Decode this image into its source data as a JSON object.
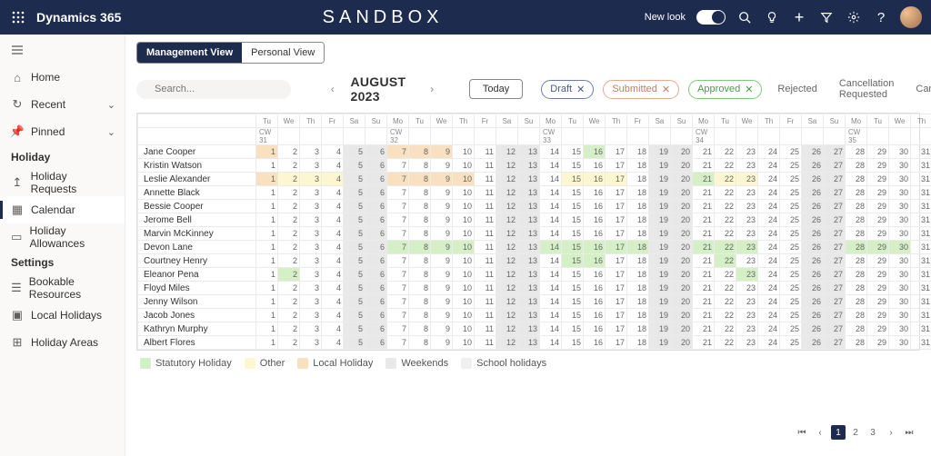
{
  "topbar": {
    "brand": "Dynamics 365",
    "center": "SANDBOX",
    "newlook": "New look"
  },
  "sidebar": {
    "home": "Home",
    "recent": "Recent",
    "pinned": "Pinned",
    "group_holiday": "Holiday",
    "holiday_requests": "Holiday Requests",
    "calendar": "Calendar",
    "holiday_allowances": "Holiday Allowances",
    "group_settings": "Settings",
    "bookable_resources": "Bookable Resources",
    "local_holidays": "Local Holidays",
    "holiday_areas": "Holiday Areas"
  },
  "views": {
    "management": "Management View",
    "personal": "Personal View"
  },
  "search": {
    "placeholder": "Search..."
  },
  "month": {
    "label": "AUGUST 2023",
    "today": "Today"
  },
  "filters": {
    "draft": "Draft",
    "submitted": "Submitted",
    "approved": "Approved",
    "rejected": "Rejected",
    "cancellation": "Cancellation Requested",
    "cancelled": "Cancelled"
  },
  "legend": {
    "statutory": "Statutory Holiday",
    "other": "Other",
    "local": "Local Holiday",
    "weekends": "Weekends",
    "school": "School holidays",
    "colors": {
      "statutory": "#d5efc6",
      "other": "#fcf7d0",
      "local": "#f9e0c0",
      "weekends": "#e0e0e0",
      "school": "#f0f0f0"
    }
  },
  "calendar": {
    "day_headers": [
      "Tu",
      "We",
      "Th",
      "Fr",
      "Sa",
      "Su",
      "Mo",
      "Tu",
      "We",
      "Th",
      "Fr",
      "Sa",
      "Su",
      "Mo",
      "Tu",
      "We",
      "Th",
      "Fr",
      "Sa",
      "Su",
      "Mo",
      "Tu",
      "We",
      "Th",
      "Fr",
      "Sa",
      "Su",
      "Mo",
      "Tu",
      "We",
      "Th"
    ],
    "day_numbers": [
      1,
      2,
      3,
      4,
      5,
      6,
      7,
      8,
      9,
      10,
      11,
      12,
      13,
      14,
      15,
      16,
      17,
      18,
      19,
      20,
      21,
      22,
      23,
      24,
      25,
      26,
      27,
      28,
      29,
      30,
      31
    ],
    "weeks": {
      "0": "CW 31",
      "6": "CW 32",
      "13": "CW 33",
      "20": "CW 34",
      "27": "CW 35"
    },
    "weekend_idx": [
      4,
      5,
      11,
      12,
      18,
      19,
      25,
      26
    ],
    "employees": [
      {
        "name": "Jane Cooper",
        "cells": {
          "0": "local",
          "6": "local",
          "7": "local",
          "8": "local",
          "15": "stat"
        }
      },
      {
        "name": "Kristin Watson",
        "cells": {}
      },
      {
        "name": "Leslie Alexander",
        "cells": {
          "0": "local",
          "1": "other",
          "2": "other",
          "3": "other",
          "6": "local",
          "7": "local",
          "8": "local",
          "9": "local",
          "14": "other",
          "15": "other",
          "16": "other",
          "20": "stat",
          "21": "other",
          "22": "other"
        }
      },
      {
        "name": "Annette Black",
        "cells": {}
      },
      {
        "name": "Bessie Cooper",
        "cells": {}
      },
      {
        "name": "Jerome Bell",
        "cells": {}
      },
      {
        "name": "Marvin McKinney",
        "cells": {}
      },
      {
        "name": "Devon Lane",
        "cells": {
          "6": "stat",
          "7": "stat",
          "8": "stat",
          "9": "stat",
          "13": "stat",
          "14": "stat",
          "15": "stat",
          "16": "stat",
          "17": "stat",
          "20": "stat",
          "21": "stat",
          "22": "stat",
          "27": "stat",
          "28": "stat",
          "29": "stat"
        }
      },
      {
        "name": "Courtney Henry",
        "cells": {
          "14": "stat",
          "15": "stat",
          "21": "stat"
        }
      },
      {
        "name": "Eleanor Pena",
        "cells": {
          "1": "stat",
          "22": "stat"
        }
      },
      {
        "name": "Floyd Miles",
        "cells": {}
      },
      {
        "name": "Jenny Wilson",
        "cells": {}
      },
      {
        "name": "Jacob Jones",
        "cells": {}
      },
      {
        "name": "Kathryn Murphy",
        "cells": {}
      },
      {
        "name": "Albert Flores",
        "cells": {}
      }
    ]
  },
  "pager": {
    "pages": [
      "1",
      "2",
      "3"
    ],
    "active": 0
  }
}
